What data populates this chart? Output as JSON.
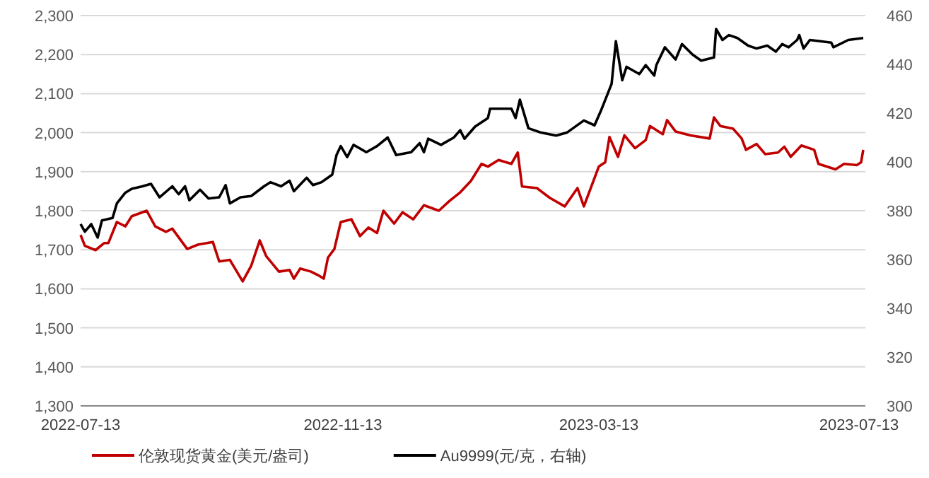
{
  "chart_data": {
    "type": "line",
    "x": [
      "2022-07-13",
      "2022-07-15",
      "2022-07-20",
      "2022-07-24",
      "2022-07-26",
      "2022-07-30",
      "2022-08-03",
      "2022-08-06",
      "2022-08-13",
      "2022-08-17",
      "2022-08-22",
      "2022-08-25",
      "2022-09-01",
      "2022-09-06",
      "2022-09-13",
      "2022-09-16",
      "2022-09-21",
      "2022-09-27",
      "2022-10-01",
      "2022-10-05",
      "2022-10-08",
      "2022-10-14",
      "2022-10-19",
      "2022-10-21",
      "2022-10-24",
      "2022-10-29",
      "2022-11-02",
      "2022-11-04",
      "2022-11-06",
      "2022-11-09",
      "2022-11-12",
      "2022-11-17",
      "2022-11-21",
      "2022-11-25",
      "2022-11-29",
      "2022-12-02",
      "2022-12-07",
      "2022-12-11",
      "2022-12-16",
      "2022-12-21",
      "2022-12-28",
      "2023-01-02",
      "2023-01-07",
      "2023-01-12",
      "2023-01-17",
      "2023-01-20",
      "2023-01-25",
      "2023-01-31",
      "2023-02-03",
      "2023-02-05",
      "2023-02-12",
      "2023-02-18",
      "2023-02-25",
      "2023-03-03",
      "2023-03-06",
      "2023-03-13",
      "2023-03-16",
      "2023-03-18",
      "2023-03-22",
      "2023-03-25",
      "2023-03-30",
      "2023-04-04",
      "2023-04-06",
      "2023-04-12",
      "2023-04-14",
      "2023-04-18",
      "2023-04-25",
      "2023-05-04",
      "2023-05-06",
      "2023-05-09",
      "2023-05-15",
      "2023-05-19",
      "2023-05-21",
      "2023-05-26",
      "2023-05-30",
      "2023-06-05",
      "2023-06-08",
      "2023-06-11",
      "2023-06-16",
      "2023-06-22",
      "2023-06-24",
      "2023-07-02",
      "2023-07-06",
      "2023-07-12",
      "2023-07-14",
      "2023-07-15"
    ],
    "series": [
      {
        "name": "伦敦现货黄金(美元/盎司)",
        "color": "#c00000",
        "values": [
          1738,
          1710,
          1699,
          1717,
          1717,
          1771,
          1760,
          1786,
          1800,
          1760,
          1746,
          1754,
          1702,
          1713,
          1720,
          1670,
          1674,
          1619,
          1659,
          1724,
          1684,
          1644,
          1648,
          1626,
          1652,
          1644,
          1633,
          1626,
          1680,
          1702,
          1771,
          1778,
          1735,
          1757,
          1743,
          1800,
          1767,
          1796,
          1778,
          1814,
          1800,
          1825,
          1847,
          1876,
          1920,
          1913,
          1930,
          1920,
          1949,
          1862,
          1858,
          1833,
          1811,
          1858,
          1811,
          1913,
          1924,
          1989,
          1938,
          1993,
          1960,
          1981,
          2017,
          1996,
          2032,
          2003,
          1993,
          1985,
          2039,
          2017,
          2010,
          1985,
          1956,
          1971,
          1945,
          1949,
          1964,
          1938,
          1967,
          1956,
          1920,
          1906,
          1920,
          1917,
          1924,
          1956
        ]
      },
      {
        "name": "Au9999(元/克，右轴)",
        "color": "#000000",
        "axis": "y2",
        "x": [
          "2022-07-13",
          "2022-07-15",
          "2022-07-18",
          "2022-07-21",
          "2022-07-23",
          "2022-07-28",
          "2022-07-30",
          "2022-08-03",
          "2022-08-06",
          "2022-08-11",
          "2022-08-15",
          "2022-08-19",
          "2022-08-25",
          "2022-08-28",
          "2022-08-31",
          "2022-09-02",
          "2022-09-07",
          "2022-09-11",
          "2022-09-16",
          "2022-09-19",
          "2022-09-21",
          "2022-09-26",
          "2022-10-01",
          "2022-10-07",
          "2022-10-10",
          "2022-10-15",
          "2022-10-19",
          "2022-10-21",
          "2022-10-27",
          "2022-10-30",
          "2022-11-03",
          "2022-11-08",
          "2022-11-10",
          "2022-11-12",
          "2022-11-15",
          "2022-11-18",
          "2022-11-24",
          "2022-11-29",
          "2022-12-04",
          "2022-12-08",
          "2022-12-15",
          "2022-12-19",
          "2022-12-21",
          "2022-12-23",
          "2022-12-29",
          "2023-01-04",
          "2023-01-07",
          "2023-01-09",
          "2023-01-14",
          "2023-01-20",
          "2023-01-21",
          "2023-01-31",
          "2023-02-02",
          "2023-02-04",
          "2023-02-08",
          "2023-02-14",
          "2023-02-21",
          "2023-02-26",
          "2023-03-06",
          "2023-03-11",
          "2023-03-14",
          "2023-03-19",
          "2023-03-21",
          "2023-03-24",
          "2023-03-26",
          "2023-04-01",
          "2023-04-04",
          "2023-04-08",
          "2023-04-09",
          "2023-04-13",
          "2023-04-18",
          "2023-04-21",
          "2023-04-26",
          "2023-04-30",
          "2023-05-06",
          "2023-05-07",
          "2023-05-10",
          "2023-05-13",
          "2023-05-17",
          "2023-05-22",
          "2023-05-26",
          "2023-05-31",
          "2023-06-04",
          "2023-06-07",
          "2023-06-10",
          "2023-06-14",
          "2023-06-15",
          "2023-06-17",
          "2023-06-20",
          "2023-06-30",
          "2023-07-01",
          "2023-07-08",
          "2023-07-15"
        ],
        "values": [
          374.5,
          371.4,
          374.5,
          369,
          376,
          377,
          383,
          387.4,
          389,
          390,
          391,
          385.5,
          390,
          386.8,
          390,
          384.3,
          388.6,
          385,
          385.5,
          390.5,
          383,
          385.5,
          386,
          390,
          391.7,
          390,
          392.3,
          388,
          393.5,
          390.5,
          391.7,
          394.8,
          402.8,
          406.5,
          402,
          407,
          404,
          406.5,
          410,
          402.8,
          404,
          407.7,
          404,
          409.5,
          407,
          410,
          413,
          409.5,
          414.5,
          418,
          421.8,
          421.8,
          418,
          425.5,
          413.8,
          412,
          410.8,
          412,
          417,
          415,
          421,
          432,
          449.5,
          433.5,
          439,
          436,
          439.7,
          435.4,
          439.7,
          447,
          442,
          448.3,
          444,
          441.5,
          442.8,
          454.5,
          450,
          452,
          450.8,
          447.7,
          446.5,
          447.7,
          445.2,
          448.3,
          447,
          450,
          452,
          446.5,
          450,
          448.9,
          447,
          450,
          450.8
        ]
      }
    ],
    "xlim": [
      "2022-07-13",
      "2023-07-16"
    ],
    "xticks": [
      "2022-07-13",
      "2022-11-13",
      "2023-03-13",
      "2023-07-13"
    ],
    "ylim": [
      1300,
      2300
    ],
    "yticks": [
      {
        "value": 1300,
        "label": "1,300"
      },
      {
        "value": 1400,
        "label": "1,400"
      },
      {
        "value": 1500,
        "label": "1,500"
      },
      {
        "value": 1600,
        "label": "1,600"
      },
      {
        "value": 1700,
        "label": "1,700"
      },
      {
        "value": 1800,
        "label": "1,800"
      },
      {
        "value": 1900,
        "label": "1,900"
      },
      {
        "value": 2000,
        "label": "2,000"
      },
      {
        "value": 2100,
        "label": "2,100"
      },
      {
        "value": 2200,
        "label": "2,200"
      },
      {
        "value": 2300,
        "label": "2,300"
      }
    ],
    "y2lim": [
      300,
      460
    ],
    "y2ticks": [
      300,
      320,
      340,
      360,
      380,
      400,
      420,
      440,
      460
    ],
    "grid": "y",
    "legend": "bottom"
  }
}
